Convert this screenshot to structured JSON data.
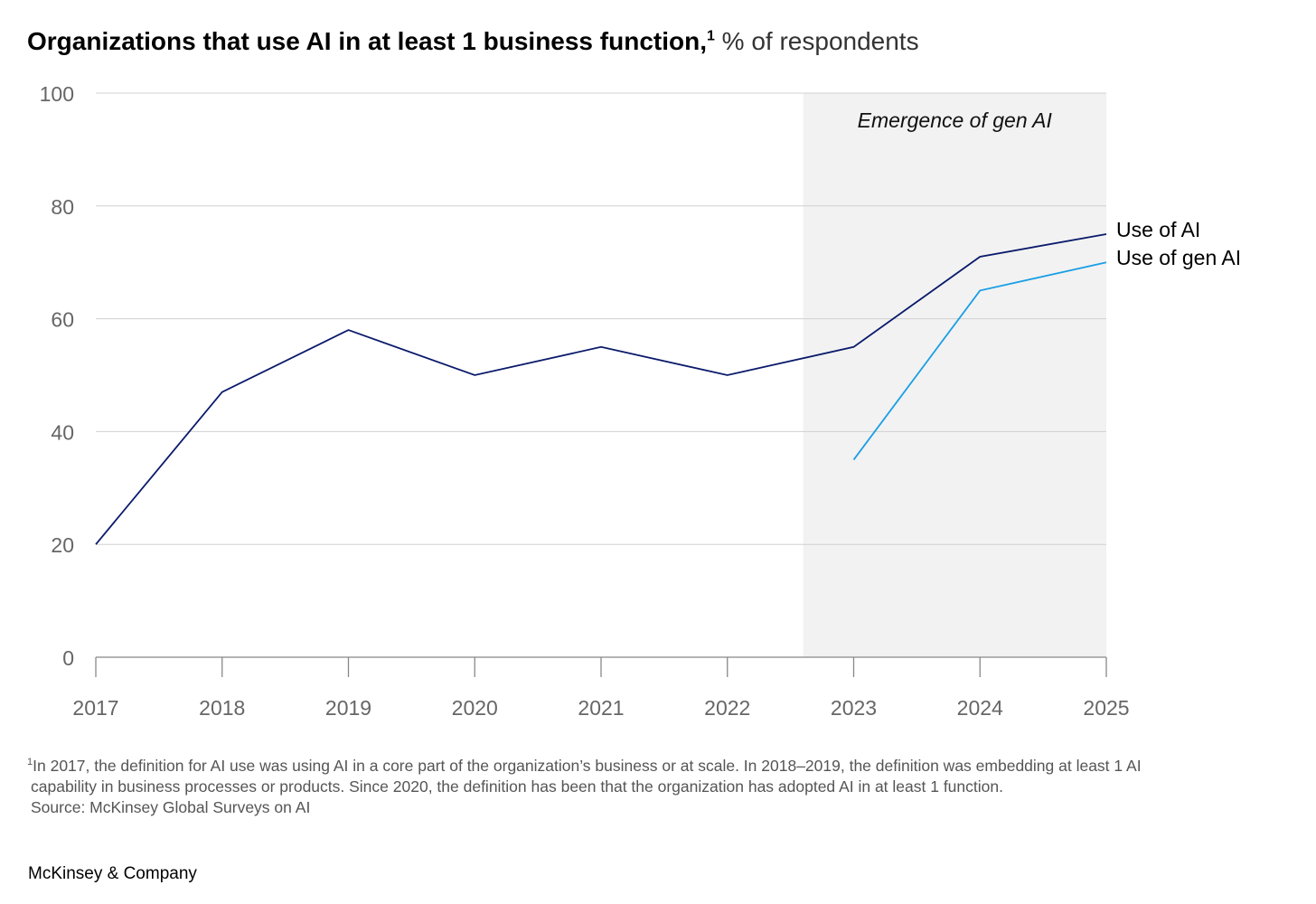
{
  "title": {
    "bold": "Organizations that use AI in at least 1 business function,",
    "footnote_mark": "1",
    "unit": " % of respondents"
  },
  "chart_data": {
    "type": "line",
    "title": "Organizations that use AI in at least 1 business function, % of respondents",
    "x": [
      2017,
      2018,
      2019,
      2020,
      2021,
      2022,
      2023,
      2024,
      2025
    ],
    "categories": [
      "2017",
      "2018",
      "2019",
      "2020",
      "2021",
      "2022",
      "2023",
      "2024",
      "2025"
    ],
    "yticks": [
      "0",
      "20",
      "40",
      "60",
      "80",
      "100"
    ],
    "ylim": [
      0,
      100
    ],
    "grid": true,
    "series": [
      {
        "name": "Use of AI",
        "color": "#0a1a6b",
        "x": [
          2017,
          2018,
          2019,
          2020,
          2021,
          2022,
          2023,
          2024,
          2025
        ],
        "values": [
          20,
          47,
          58,
          50,
          55,
          50,
          55,
          71,
          75
        ]
      },
      {
        "name": "Use of gen AI",
        "color": "#1a9ee6",
        "x": [
          2023,
          2024,
          2025
        ],
        "values": [
          35,
          65,
          70
        ]
      }
    ],
    "annotation": {
      "text": "Emergence of gen AI",
      "x_range": [
        2022.6,
        2025
      ],
      "color": "#f2f2f2"
    },
    "legend": "direct labels at right end of lines"
  },
  "footnote": {
    "mark": "1",
    "line1": "In 2017, the definition for AI use was using AI in a core part of the organization’s business or at scale. In 2018–2019, the definition was embedding at least 1 AI",
    "line2": "capability in business processes or products. Since 2020, the definition has been that the organization has adopted AI in at least 1 function.",
    "source": "Source: McKinsey Global Surveys on AI"
  },
  "brand": "McKinsey & Company"
}
